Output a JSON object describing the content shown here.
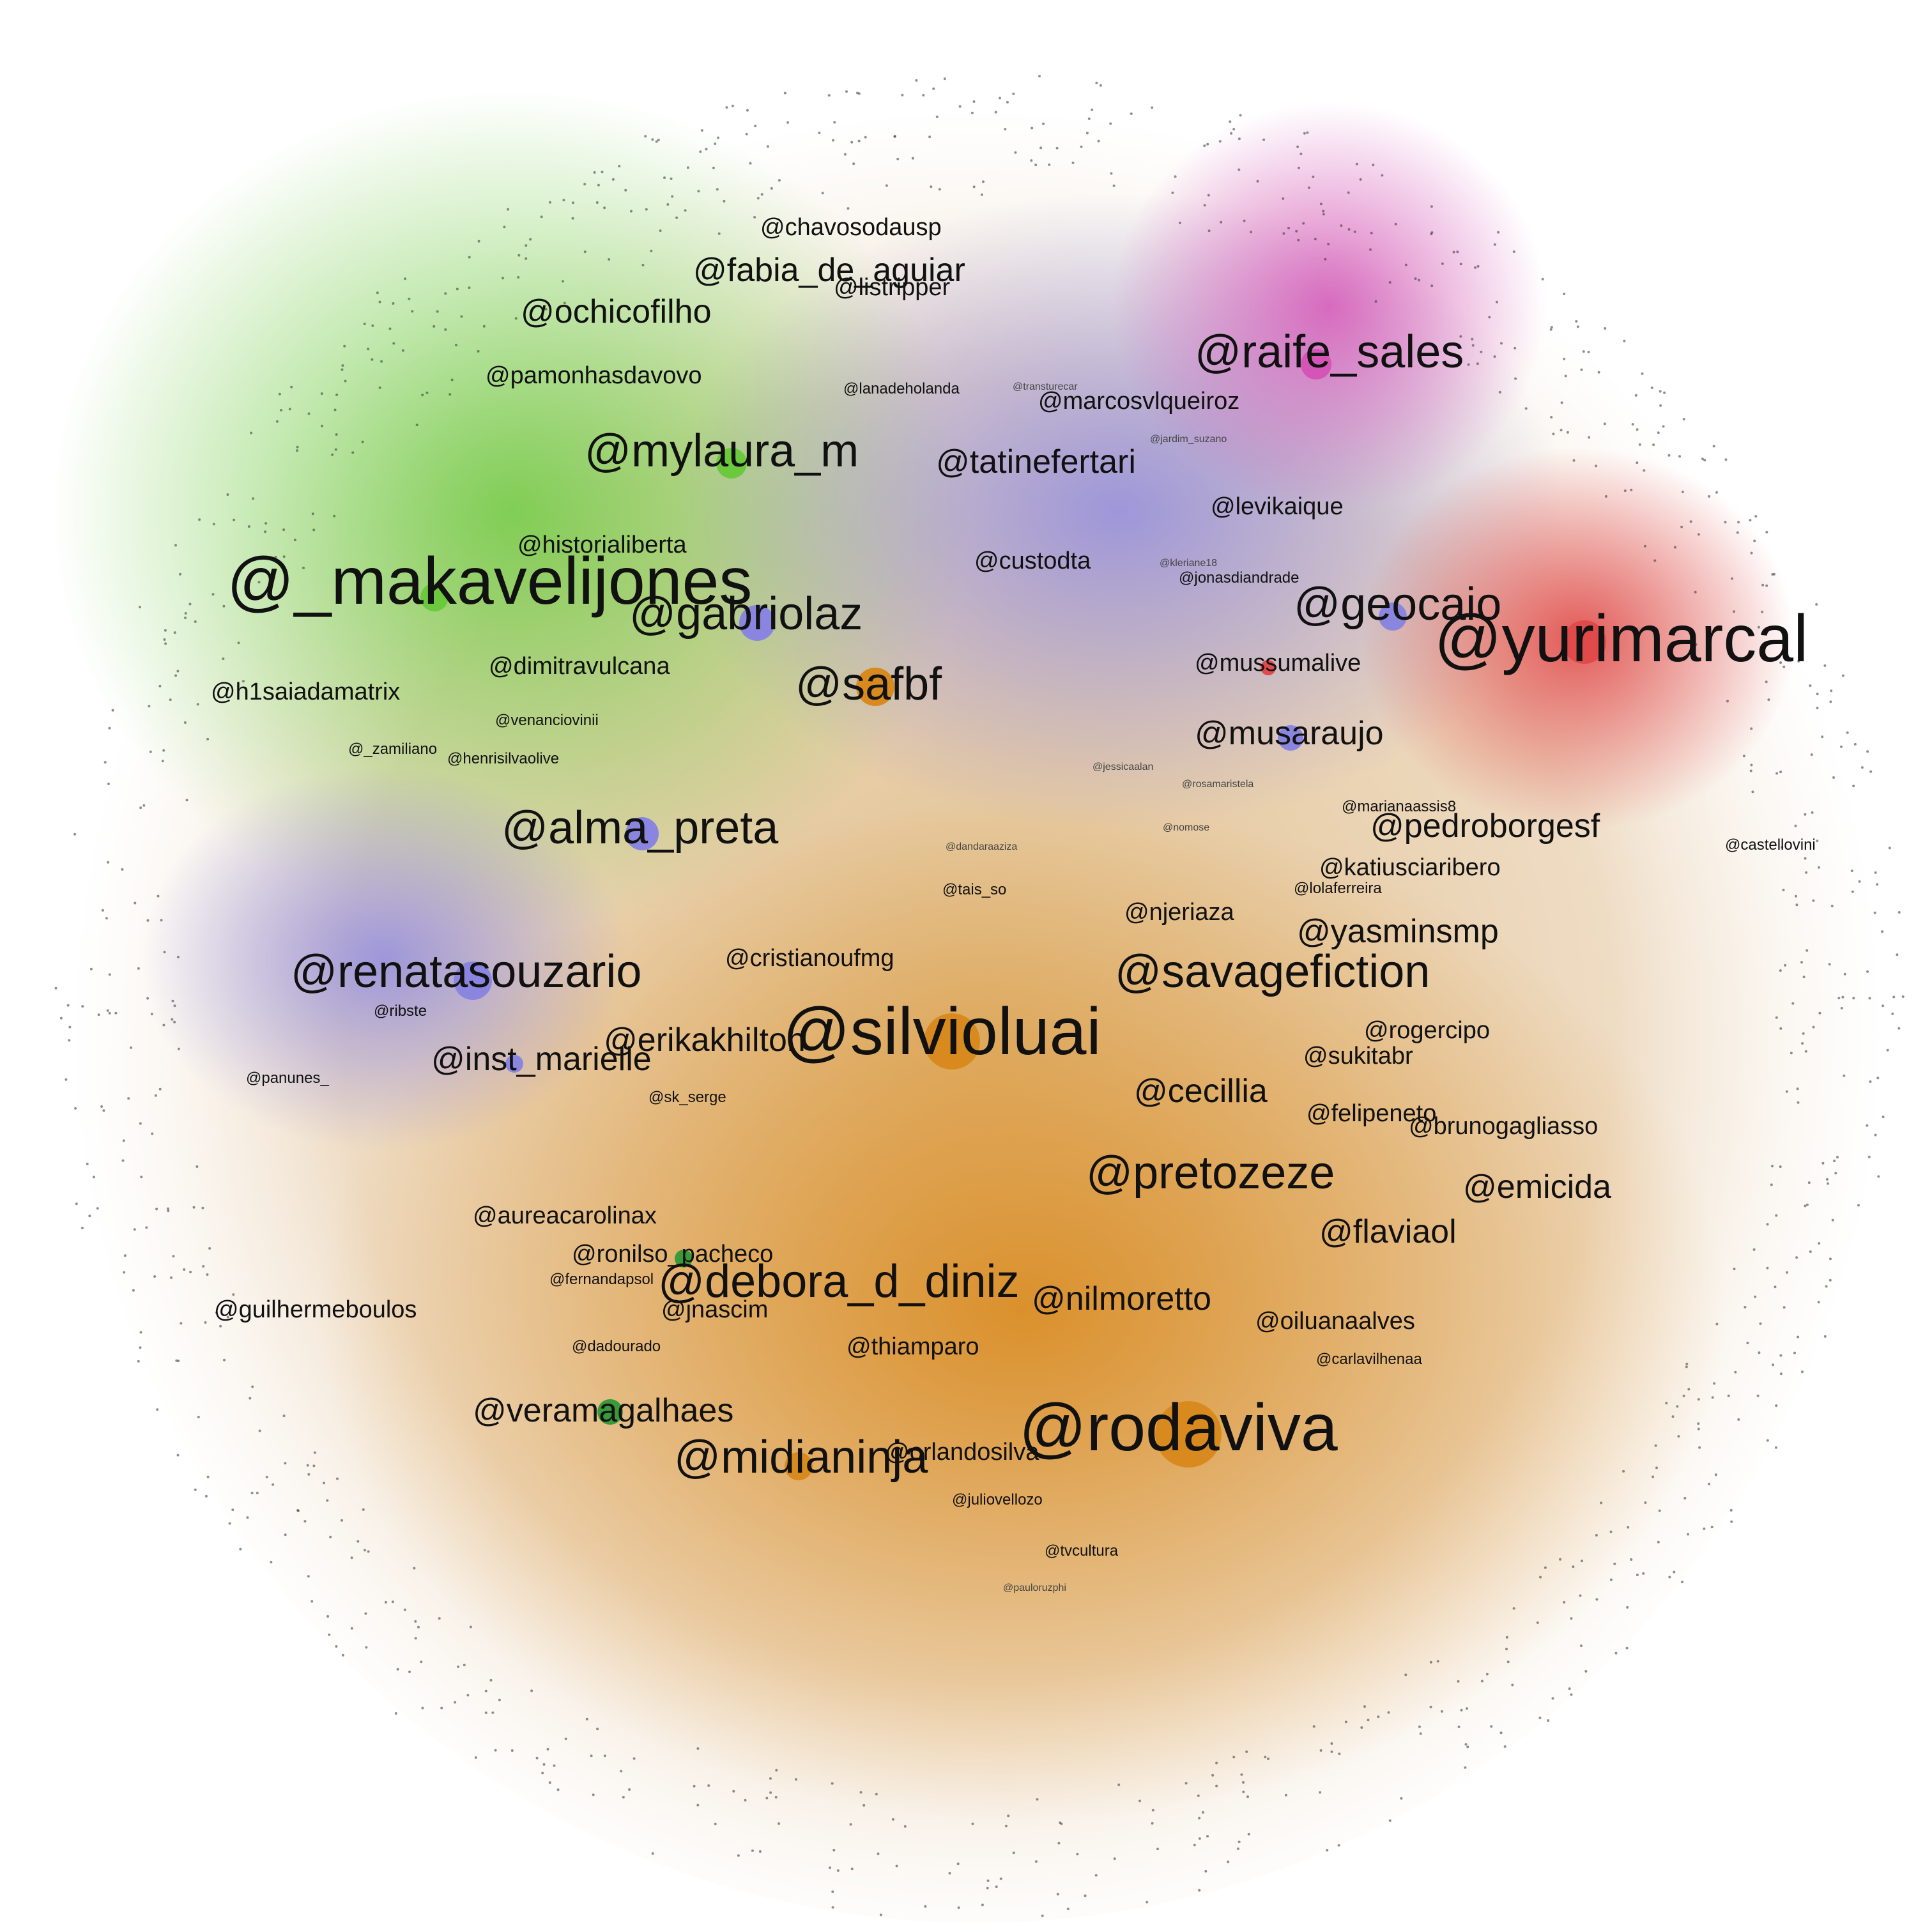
{
  "colors": {
    "green": "#6cc93e",
    "orange": "#d98a1f",
    "purple": "#8a86e0",
    "magenta": "#d455b6",
    "red": "#e04a4a",
    "dark_green": "#3a9a3a"
  },
  "labels": [
    {
      "id": "chavosodausp",
      "text": "@chavosodausp",
      "cluster": "green"
    },
    {
      "id": "fabia",
      "text": "@fabia_de_aguiar",
      "cluster": "green"
    },
    {
      "id": "listripper",
      "text": "@listripper",
      "cluster": "green"
    },
    {
      "id": "ochicofilho",
      "text": "@ochicofilho",
      "cluster": "green"
    },
    {
      "id": "pamonhasdavovo",
      "text": "@pamonhasdavovo",
      "cluster": "green"
    },
    {
      "id": "lanadeholanda",
      "text": "@lanadeholanda",
      "cluster": "purple"
    },
    {
      "id": "transturecar",
      "text": "@transturecar",
      "cluster": "purple"
    },
    {
      "id": "marcosvlqueiroz",
      "text": "@marcosvlqueiroz",
      "cluster": "purple"
    },
    {
      "id": "raife",
      "text": "@raife_sales",
      "cluster": "magenta"
    },
    {
      "id": "mylaura",
      "text": "@mylaura_m",
      "cluster": "green"
    },
    {
      "id": "tatinefertari",
      "text": "@tatinefertari",
      "cluster": "purple"
    },
    {
      "id": "jardim",
      "text": "@jardim_suzano",
      "cluster": "purple"
    },
    {
      "id": "levikaique",
      "text": "@levikaique",
      "cluster": "purple"
    },
    {
      "id": "historialiberta",
      "text": "@historialiberta",
      "cluster": "green"
    },
    {
      "id": "custodta",
      "text": "@custodta",
      "cluster": "orange"
    },
    {
      "id": "kleriane18",
      "text": "@kleriane18",
      "cluster": "orange"
    },
    {
      "id": "jonasdiandrade",
      "text": "@jonasdiandrade",
      "cluster": "orange"
    },
    {
      "id": "makavelijones",
      "text": "@_makavelijones",
      "cluster": "green"
    },
    {
      "id": "gabriolaz",
      "text": "@gabriolaz",
      "cluster": "purple"
    },
    {
      "id": "geocaio",
      "text": "@geocaio",
      "cluster": "purple"
    },
    {
      "id": "yurimarcal",
      "text": "@yurimarcal",
      "cluster": "red"
    },
    {
      "id": "mussumalive",
      "text": "@mussumalive",
      "cluster": "red"
    },
    {
      "id": "dimitravulcana",
      "text": "@dimitravulcana",
      "cluster": "green"
    },
    {
      "id": "safbf",
      "text": "@safbf",
      "cluster": "orange"
    },
    {
      "id": "h1saiadamatrix",
      "text": "@h1saiadamatrix",
      "cluster": "green"
    },
    {
      "id": "venanciovinii",
      "text": "@venanciovinii",
      "cluster": "purple"
    },
    {
      "id": "musaraujo",
      "text": "@musaraujo",
      "cluster": "purple"
    },
    {
      "id": "zamiliano",
      "text": "@_zamiliano",
      "cluster": "green"
    },
    {
      "id": "henrisilvaolive",
      "text": "@henrisilvaolive",
      "cluster": "green"
    },
    {
      "id": "jessicaalan",
      "text": "@jessicaalan",
      "cluster": "orange"
    },
    {
      "id": "rosamaristela",
      "text": "@rosamaristela",
      "cluster": "orange"
    },
    {
      "id": "marianaassis8",
      "text": "@marianaassis8",
      "cluster": "orange"
    },
    {
      "id": "pedroborgesf",
      "text": "@pedroborgesf",
      "cluster": "orange"
    },
    {
      "id": "alma_preta",
      "text": "@alma_preta",
      "cluster": "purple"
    },
    {
      "id": "dandaraaziza",
      "text": "@dandaraaziza",
      "cluster": "orange"
    },
    {
      "id": "nomose",
      "text": "@nomose",
      "cluster": "orange"
    },
    {
      "id": "katiusciaribero",
      "text": "@katiusciaribero",
      "cluster": "orange"
    },
    {
      "id": "lolaferreira",
      "text": "@lolaferreira",
      "cluster": "orange"
    },
    {
      "id": "tais_so",
      "text": "@tais_so",
      "cluster": "orange"
    },
    {
      "id": "njeriaza",
      "text": "@njeriaza",
      "cluster": "orange"
    },
    {
      "id": "yasminsmp",
      "text": "@yasminsmp",
      "cluster": "orange"
    },
    {
      "id": "castellovini",
      "text": "@castellovini",
      "cluster": "purple"
    },
    {
      "id": "renatasouzario",
      "text": "@renatasouzario",
      "cluster": "purple"
    },
    {
      "id": "cristianoufmg",
      "text": "@cristianoufmg",
      "cluster": "orange"
    },
    {
      "id": "savagefiction",
      "text": "@savagefiction",
      "cluster": "orange"
    },
    {
      "id": "ribste",
      "text": "@ribste",
      "cluster": "purple"
    },
    {
      "id": "silvioluai",
      "text": "@silvioluai",
      "cluster": "orange"
    },
    {
      "id": "erikakhilton",
      "text": "@erikakhilton",
      "cluster": "orange"
    },
    {
      "id": "rogercipo",
      "text": "@rogercipo",
      "cluster": "orange"
    },
    {
      "id": "inst_marielle",
      "text": "@inst_marielle",
      "cluster": "purple"
    },
    {
      "id": "sukitabr",
      "text": "@sukitabr",
      "cluster": "orange"
    },
    {
      "id": "panunes",
      "text": "@panunes_",
      "cluster": "purple"
    },
    {
      "id": "cecillia",
      "text": "@cecillia",
      "cluster": "orange"
    },
    {
      "id": "sk_serge",
      "text": "@sk_serge",
      "cluster": "orange"
    },
    {
      "id": "felipeneto",
      "text": "@felipeneto",
      "cluster": "orange"
    },
    {
      "id": "brunogagliasso",
      "text": "@brunogagliasso",
      "cluster": "orange"
    },
    {
      "id": "pretozeze",
      "text": "@pretozeze",
      "cluster": "orange"
    },
    {
      "id": "emicida",
      "text": "@emicida",
      "cluster": "orange"
    },
    {
      "id": "aureacarolinax",
      "text": "@aureacarolinax",
      "cluster": "orange"
    },
    {
      "id": "flaviaol",
      "text": "@flaviaol",
      "cluster": "orange"
    },
    {
      "id": "ronilso",
      "text": "@ronilso_pacheco",
      "cluster": "dark_green"
    },
    {
      "id": "fernandapsol",
      "text": "@fernandapsol",
      "cluster": "orange"
    },
    {
      "id": "debora",
      "text": "@debora_d_diniz",
      "cluster": "orange"
    },
    {
      "id": "jnascim",
      "text": "@jnascim",
      "cluster": "orange"
    },
    {
      "id": "nilmoretto",
      "text": "@nilmoretto",
      "cluster": "orange"
    },
    {
      "id": "guilhermeboulos",
      "text": "@guilhermeboulos",
      "cluster": "orange"
    },
    {
      "id": "oiluanaalves",
      "text": "@oiluanaalves",
      "cluster": "orange"
    },
    {
      "id": "dadourado",
      "text": "@dadourado",
      "cluster": "orange"
    },
    {
      "id": "thiamparo",
      "text": "@thiamparo",
      "cluster": "orange"
    },
    {
      "id": "carlavilhenaa",
      "text": "@carlavilhenaa",
      "cluster": "orange"
    },
    {
      "id": "veramagalhaes",
      "text": "@veramagalhaes",
      "cluster": "dark_green"
    },
    {
      "id": "rodaviva",
      "text": "@rodaviva",
      "cluster": "orange"
    },
    {
      "id": "midianinja",
      "text": "@midianinja",
      "cluster": "orange"
    },
    {
      "id": "orlandosilva",
      "text": "@orlandosilva",
      "cluster": "orange"
    },
    {
      "id": "juliovellozo",
      "text": "@juliovellozo",
      "cluster": "orange"
    },
    {
      "id": "tvcultura",
      "text": "@tvcultura",
      "cluster": "orange"
    },
    {
      "id": "pauloruzphi",
      "text": "@pauloruzphi",
      "cluster": "orange"
    }
  ]
}
